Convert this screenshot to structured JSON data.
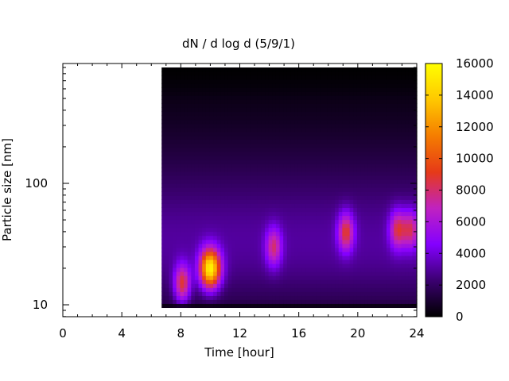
{
  "chart_data": {
    "type": "heatmap",
    "title": "dN / d log d (5/9/1)",
    "xlabel": "Time [hour]",
    "ylabel": "Particle size [nm]",
    "xlim": [
      0,
      24
    ],
    "ylim": [
      8,
      920
    ],
    "y_scale": "log",
    "x_ticks": [
      0,
      4,
      8,
      12,
      16,
      20,
      24
    ],
    "x_tick_labels": [
      "0",
      "4",
      "8",
      "12",
      "16",
      "20",
      "24"
    ],
    "y_ticks": [
      10,
      100
    ],
    "y_tick_labels": [
      "10",
      "100"
    ],
    "colorbar": {
      "range": [
        0,
        16000
      ],
      "ticks": [
        0,
        2000,
        4000,
        6000,
        8000,
        10000,
        12000,
        14000,
        16000
      ],
      "tick_labels": [
        "0",
        "2000",
        "4000",
        "6000",
        "8000",
        "10000",
        "12000",
        "14000",
        "16000"
      ],
      "colors": [
        "#000000",
        "#3b0070",
        "#8400ff",
        "#c022c0",
        "#e63a18",
        "#f57d00",
        "#ffc800",
        "#ffff00"
      ]
    },
    "data_extent": {
      "time": [
        6.7,
        24
      ],
      "size": [
        9.5,
        900
      ]
    },
    "peaks": [
      {
        "time": 10.0,
        "size": 20,
        "value": 13000
      },
      {
        "time": 8.1,
        "size": 15,
        "value": 6500
      },
      {
        "time": 14.3,
        "size": 30,
        "value": 5000
      },
      {
        "time": 19.2,
        "size": 40,
        "value": 6000
      },
      {
        "time": 22.7,
        "size": 42,
        "value": 5500
      },
      {
        "time": 23.6,
        "size": 42,
        "value": 5000
      }
    ]
  }
}
